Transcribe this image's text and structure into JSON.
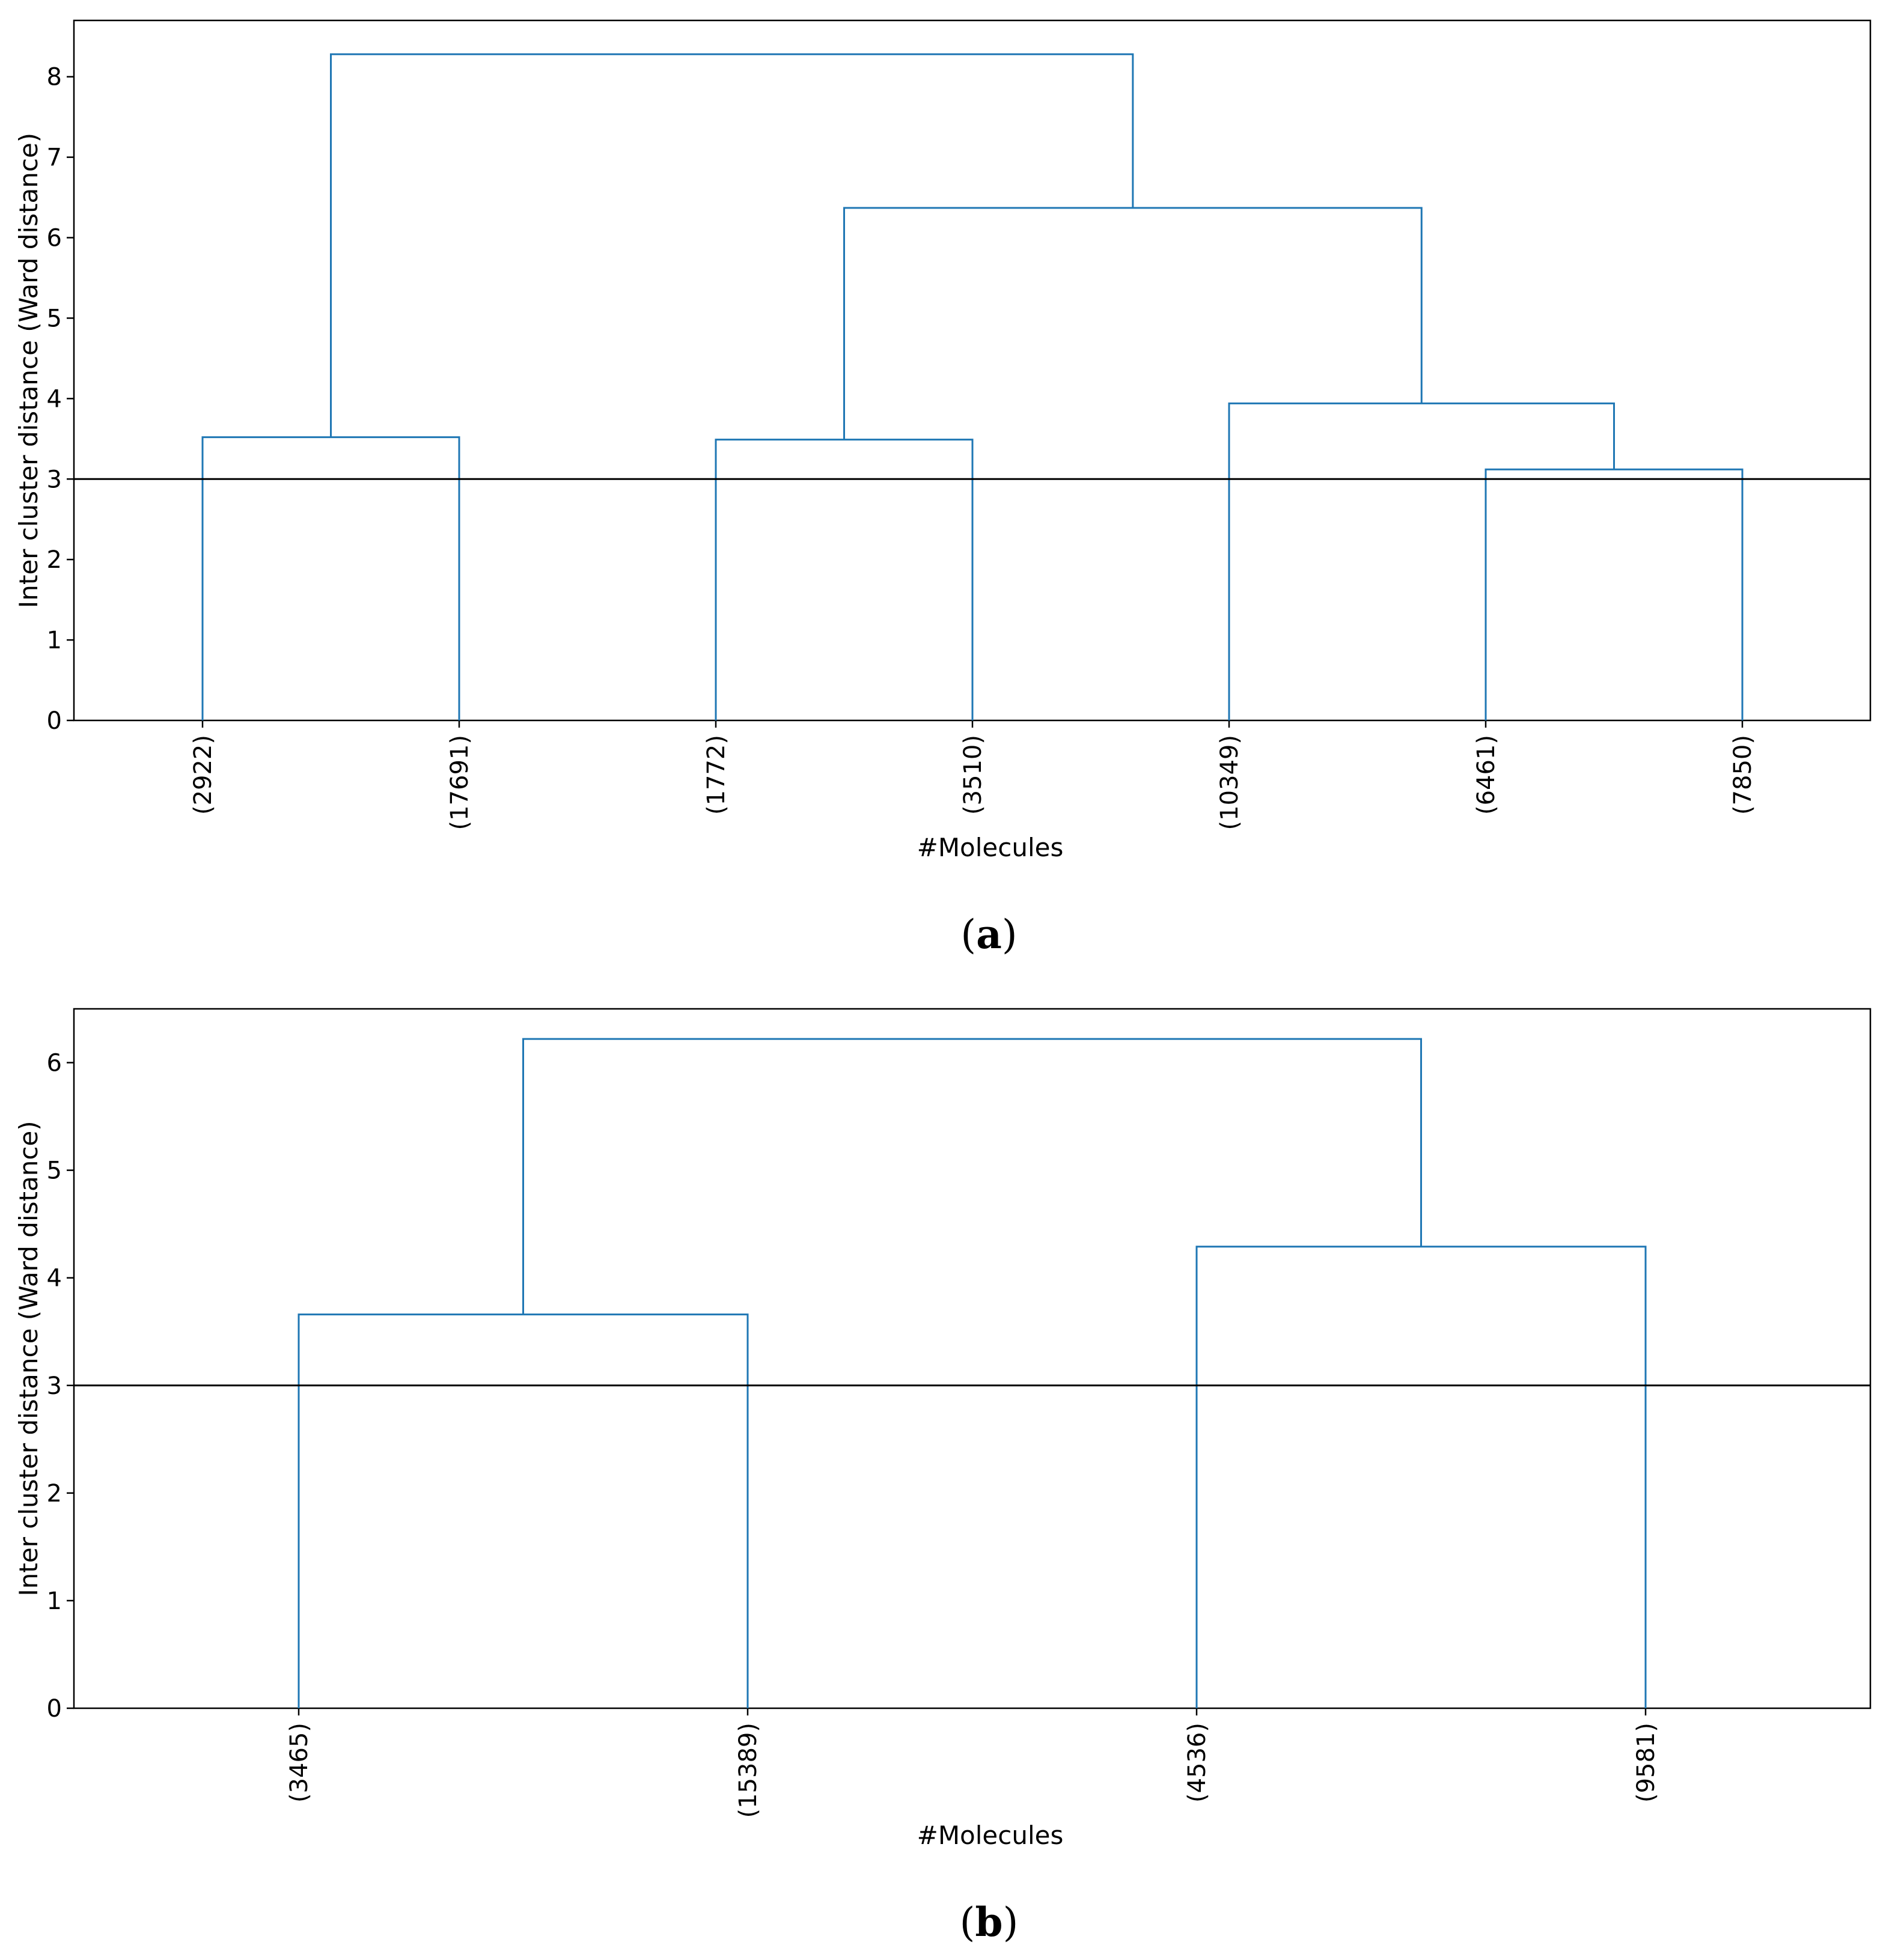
{
  "chart_data": [
    {
      "type": "dendrogram",
      "caption": {
        "open": "(",
        "letter": "a",
        "close": ")"
      },
      "xlabel": "#Molecules",
      "ylabel": "Inter cluster distance (Ward distance)",
      "ylim": [
        0,
        8.7
      ],
      "yticks": [
        0,
        1,
        2,
        3,
        4,
        5,
        6,
        7,
        8
      ],
      "threshold": 3,
      "colors": {
        "links": "#1f77b4",
        "threshold": "#000000"
      },
      "leaves": [
        "(2922)",
        "(17691)",
        "(1772)",
        "(3510)",
        "(10349)",
        "(6461)",
        "(7850)"
      ],
      "merges": [
        {
          "left": "leaf:0",
          "right": "leaf:1",
          "height": 3.52
        },
        {
          "left": "leaf:2",
          "right": "leaf:3",
          "height": 3.49
        },
        {
          "left": "leaf:5",
          "right": "leaf:6",
          "height": 3.12
        },
        {
          "left": "leaf:4",
          "right": "node:2",
          "height": 3.94
        },
        {
          "left": "node:1",
          "right": "node:3",
          "height": 6.37
        },
        {
          "left": "node:0",
          "right": "node:4",
          "height": 8.28
        }
      ]
    },
    {
      "type": "dendrogram",
      "caption": {
        "open": "(",
        "letter": "b",
        "close": ")"
      },
      "xlabel": "#Molecules",
      "ylabel": "Inter cluster distance (Ward distance)",
      "ylim": [
        0,
        6.5
      ],
      "yticks": [
        0,
        1,
        2,
        3,
        4,
        5,
        6
      ],
      "threshold": 3,
      "colors": {
        "links": "#1f77b4",
        "threshold": "#000000"
      },
      "leaves": [
        "(3465)",
        "(15389)",
        "(4536)",
        "(9581)"
      ],
      "merges": [
        {
          "left": "leaf:0",
          "right": "leaf:1",
          "height": 3.66
        },
        {
          "left": "leaf:2",
          "right": "leaf:3",
          "height": 4.29
        },
        {
          "left": "node:0",
          "right": "node:1",
          "height": 6.22
        }
      ]
    }
  ]
}
